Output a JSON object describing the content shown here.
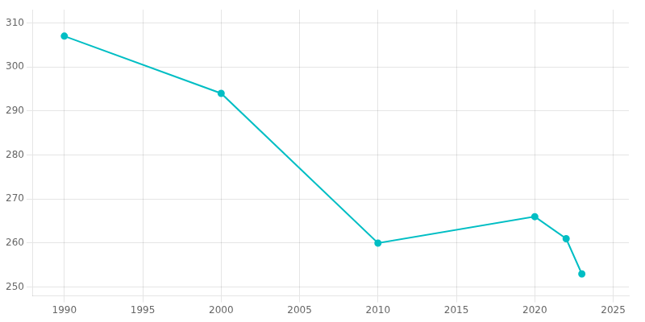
{
  "chart_data": {
    "type": "line",
    "x": [
      1990,
      2000,
      2010,
      2020,
      2022,
      2023
    ],
    "values": [
      307,
      294,
      260,
      266,
      261,
      253
    ],
    "color": "#00BEC4",
    "marker": "circle",
    "xlim": [
      1988,
      2026
    ],
    "ylim": [
      248,
      313
    ],
    "xticks": [
      1990,
      1995,
      2000,
      2005,
      2010,
      2015,
      2020,
      2025
    ],
    "yticks": [
      250,
      260,
      270,
      280,
      290,
      300,
      310
    ],
    "grid": true
  }
}
